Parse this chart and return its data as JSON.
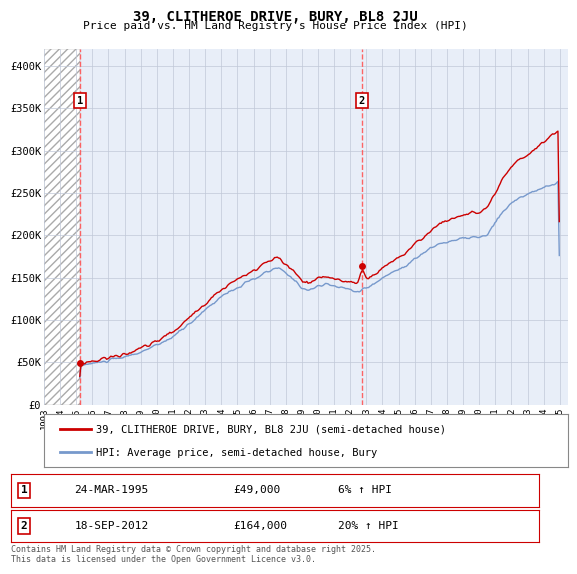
{
  "title": "39, CLITHEROE DRIVE, BURY, BL8 2JU",
  "subtitle": "Price paid vs. HM Land Registry's House Price Index (HPI)",
  "ylabel_ticks": [
    "£0",
    "£50K",
    "£100K",
    "£150K",
    "£200K",
    "£250K",
    "£300K",
    "£350K",
    "£400K"
  ],
  "ytick_values": [
    0,
    50000,
    100000,
    150000,
    200000,
    250000,
    300000,
    350000,
    400000
  ],
  "ylim": [
    0,
    420000
  ],
  "xlim_start": 1993.0,
  "xlim_end": 2025.5,
  "xticks": [
    1993,
    1994,
    1995,
    1996,
    1997,
    1998,
    1999,
    2000,
    2001,
    2002,
    2003,
    2004,
    2005,
    2006,
    2007,
    2008,
    2009,
    2010,
    2011,
    2012,
    2013,
    2014,
    2015,
    2016,
    2017,
    2018,
    2019,
    2020,
    2021,
    2022,
    2023,
    2024,
    2025
  ],
  "background_color": "#e8eef8",
  "grid_color": "#c0c8d8",
  "vline1_x": 1995.22,
  "vline2_x": 2012.72,
  "vline_color": "#ff5555",
  "marker1_x": 1995.22,
  "marker1_y": 49000,
  "marker2_x": 2012.72,
  "marker2_y": 164000,
  "legend_line1": "39, CLITHEROE DRIVE, BURY, BL8 2JU (semi-detached house)",
  "legend_line2": "HPI: Average price, semi-detached house, Bury",
  "sale1_label": "1",
  "sale1_date": "24-MAR-1995",
  "sale1_price": "£49,000",
  "sale1_hpi": "6% ↑ HPI",
  "sale2_label": "2",
  "sale2_date": "18-SEP-2012",
  "sale2_price": "£164,000",
  "sale2_hpi": "20% ↑ HPI",
  "footnote": "Contains HM Land Registry data © Crown copyright and database right 2025.\nThis data is licensed under the Open Government Licence v3.0.",
  "line_color_red": "#cc0000",
  "line_color_blue": "#7799cc"
}
